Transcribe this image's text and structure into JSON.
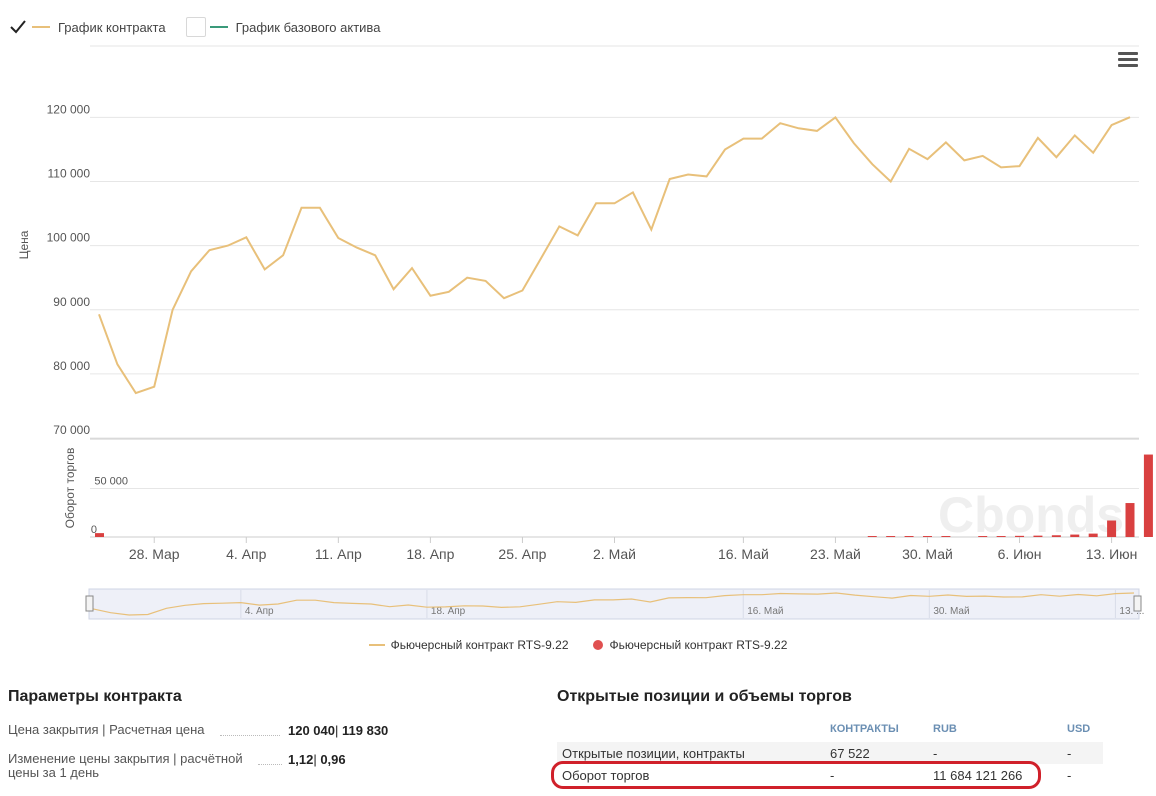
{
  "toggles": [
    {
      "label": "График контракта",
      "checked": true,
      "color": "#e8c07a"
    },
    {
      "label": "График базового актива",
      "checked": false,
      "color": "#3a9a7a"
    }
  ],
  "watermark": "Cbonds",
  "legend": [
    {
      "label": "Фьючерсный контракт RTS-9.22",
      "color": "#e8c07a",
      "kind": "line"
    },
    {
      "label": "Фьючерсный контракт RTS-9.22",
      "color": "#e05050",
      "kind": "dot"
    }
  ],
  "chart_data": {
    "type": "line",
    "price": {
      "ylabel": "Цена",
      "yticks": [
        "120 000",
        "110 000",
        "100 000",
        "90 000",
        "80 000",
        "70 000"
      ],
      "ytick_values": [
        120000,
        110000,
        100000,
        90000,
        80000,
        70000
      ],
      "ylim": [
        70000,
        121000
      ],
      "values": [
        89300,
        81500,
        77000,
        78000,
        90000,
        96000,
        99300,
        100000,
        101300,
        96300,
        98500,
        105900,
        105900,
        101200,
        99700,
        98500,
        93200,
        96500,
        92200,
        92800,
        95000,
        94500,
        91800,
        93000,
        98000,
        103000,
        101600,
        106600,
        106600,
        108300,
        102500,
        110400,
        111100,
        110800,
        115000,
        116700,
        116700,
        119100,
        118300,
        117900,
        120000,
        116000,
        112700,
        110000,
        115100,
        113500,
        116100,
        113300,
        114000,
        112200,
        112400,
        116800,
        113800,
        117200,
        114500,
        118800,
        120040
      ]
    },
    "volume": {
      "type": "bar",
      "ylabel": "Оборот торгов",
      "yticks": [
        "50 000"
      ],
      "ytick_values": [
        50000
      ],
      "ylim": [
        0,
        100000
      ],
      "bars": [
        {
          "i": 0,
          "v": 4000
        },
        {
          "i": 42,
          "v": 1000
        },
        {
          "i": 43,
          "v": 1000
        },
        {
          "i": 44,
          "v": 1000
        },
        {
          "i": 45,
          "v": 1000
        },
        {
          "i": 46,
          "v": 1000
        },
        {
          "i": 48,
          "v": 1000
        },
        {
          "i": 49,
          "v": 1000
        },
        {
          "i": 50,
          "v": 1200
        },
        {
          "i": 51,
          "v": 1400
        },
        {
          "i": 52,
          "v": 1800
        },
        {
          "i": 53,
          "v": 2500
        },
        {
          "i": 54,
          "v": 3500
        },
        {
          "i": 55,
          "v": 17000
        },
        {
          "i": 56,
          "v": 35000
        },
        {
          "i": 57,
          "v": 85000
        }
      ]
    },
    "xticks": [
      {
        "label": "28. Мар",
        "i": 3
      },
      {
        "label": "4. Апр",
        "i": 8
      },
      {
        "label": "11. Апр",
        "i": 13
      },
      {
        "label": "18. Апр",
        "i": 18
      },
      {
        "label": "25. Апр",
        "i": 23
      },
      {
        "label": "2. Май",
        "i": 28
      },
      {
        "label": "16. Май",
        "i": 35
      },
      {
        "label": "23. Май",
        "i": 40
      },
      {
        "label": "30. Май",
        "i": 45
      },
      {
        "label": "6. Июн",
        "i": 50
      },
      {
        "label": "13. Июн",
        "i": 55
      }
    ],
    "navigator_labels": [
      {
        "label": "4. Апр",
        "i": 8
      },
      {
        "label": "18. Апр",
        "i": 18
      },
      {
        "label": "16. Май",
        "i": 35
      },
      {
        "label": "30. Май",
        "i": 45
      },
      {
        "label": "13. ...",
        "i": 55
      }
    ]
  },
  "params": {
    "title": "Параметры контракта",
    "rows": [
      {
        "label": "Цена закрытия | Расчетная цена",
        "value_a": "120 040",
        "sep": "|",
        "value_b": "119 830"
      },
      {
        "label": "Изменение цены закрытия | расчётной цены за 1 день",
        "value_a": "1,12",
        "sep": "|",
        "value_b": "0,96"
      }
    ]
  },
  "open_interest": {
    "title": "Открытые позиции и объемы торгов",
    "headers": [
      "КОНТРАКТЫ",
      "RUB",
      "USD"
    ],
    "rows": [
      {
        "label": "Открытые позиции, контракты",
        "contracts": "67 522",
        "rub": "-",
        "usd": "-"
      },
      {
        "label": "Оборот торгов",
        "contracts": "-",
        "rub": "11 684 121 266",
        "usd": "-"
      }
    ]
  }
}
